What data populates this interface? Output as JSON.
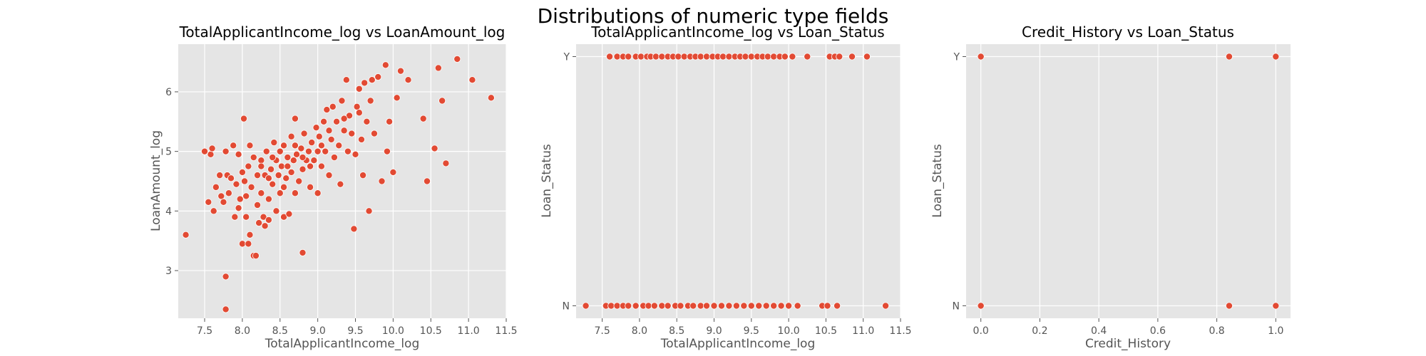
{
  "suptitle": "Distributions of numeric type fields",
  "chart_data": [
    {
      "type": "scatter",
      "title": "TotalApplicantIncome_log vs LoanAmount_log",
      "xlabel": "TotalApplicantIncome_log",
      "ylabel": "LoanAmount_log",
      "xlim": [
        7.15,
        11.5
      ],
      "ylim": [
        2.2,
        6.8
      ],
      "xticks": [
        "7.5",
        "8.0",
        "8.5",
        "9.0",
        "9.5",
        "10.0",
        "10.5",
        "11.0",
        "11.5"
      ],
      "yticks": [
        "3",
        "4",
        "5",
        "6"
      ],
      "grid": true,
      "points": [
        [
          7.25,
          3.6
        ],
        [
          7.5,
          5.0
        ],
        [
          7.55,
          4.15
        ],
        [
          7.58,
          4.95
        ],
        [
          7.6,
          5.05
        ],
        [
          7.62,
          4.0
        ],
        [
          7.65,
          4.4
        ],
        [
          7.7,
          4.6
        ],
        [
          7.72,
          4.25
        ],
        [
          7.75,
          4.15
        ],
        [
          7.78,
          5.0
        ],
        [
          7.78,
          2.9
        ],
        [
          7.78,
          2.35
        ],
        [
          7.8,
          4.6
        ],
        [
          7.82,
          4.3
        ],
        [
          7.85,
          4.55
        ],
        [
          7.88,
          5.1
        ],
        [
          7.9,
          3.9
        ],
        [
          7.92,
          4.45
        ],
        [
          7.95,
          4.05
        ],
        [
          7.95,
          4.95
        ],
        [
          7.97,
          4.2
        ],
        [
          8.0,
          3.45
        ],
        [
          8.0,
          4.65
        ],
        [
          8.02,
          5.55
        ],
        [
          8.03,
          4.5
        ],
        [
          8.05,
          3.9
        ],
        [
          8.05,
          4.25
        ],
        [
          8.08,
          4.75
        ],
        [
          8.08,
          3.45
        ],
        [
          8.1,
          3.6
        ],
        [
          8.1,
          5.1
        ],
        [
          8.12,
          4.4
        ],
        [
          8.15,
          3.25
        ],
        [
          8.15,
          4.9
        ],
        [
          8.18,
          3.25
        ],
        [
          8.2,
          4.6
        ],
        [
          8.2,
          4.1
        ],
        [
          8.22,
          3.8
        ],
        [
          8.25,
          4.85
        ],
        [
          8.25,
          4.3
        ],
        [
          8.28,
          3.9
        ],
        [
          8.3,
          3.75
        ],
        [
          8.3,
          4.6
        ],
        [
          8.32,
          5.0
        ],
        [
          8.35,
          4.2
        ],
        [
          8.35,
          3.85
        ],
        [
          8.38,
          4.7
        ],
        [
          8.4,
          4.45
        ],
        [
          8.42,
          5.15
        ],
        [
          8.45,
          4.0
        ],
        [
          8.45,
          4.85
        ],
        [
          8.48,
          4.6
        ],
        [
          8.5,
          5.0
        ],
        [
          8.5,
          4.3
        ],
        [
          8.52,
          4.75
        ],
        [
          8.55,
          5.1
        ],
        [
          8.55,
          3.9
        ],
        [
          8.58,
          4.55
        ],
        [
          8.6,
          4.9
        ],
        [
          8.62,
          3.95
        ],
        [
          8.65,
          4.65
        ],
        [
          8.65,
          5.25
        ],
        [
          8.68,
          4.85
        ],
        [
          8.7,
          5.55
        ],
        [
          8.7,
          4.3
        ],
        [
          8.72,
          4.95
        ],
        [
          8.75,
          4.5
        ],
        [
          8.78,
          5.05
        ],
        [
          8.8,
          4.7
        ],
        [
          8.8,
          3.3
        ],
        [
          8.82,
          5.3
        ],
        [
          8.85,
          4.85
        ],
        [
          8.88,
          5.0
        ],
        [
          8.9,
          4.4
        ],
        [
          8.92,
          5.15
        ],
        [
          8.95,
          4.85
        ],
        [
          8.98,
          5.4
        ],
        [
          9.0,
          5.0
        ],
        [
          9.0,
          4.3
        ],
        [
          9.02,
          5.25
        ],
        [
          9.05,
          4.75
        ],
        [
          9.08,
          5.5
        ],
        [
          9.1,
          5.0
        ],
        [
          9.12,
          5.7
        ],
        [
          9.15,
          4.6
        ],
        [
          9.18,
          5.2
        ],
        [
          9.2,
          5.75
        ],
        [
          9.22,
          4.9
        ],
        [
          9.25,
          5.5
        ],
        [
          9.28,
          5.1
        ],
        [
          9.3,
          4.45
        ],
        [
          9.32,
          5.85
        ],
        [
          9.35,
          5.35
        ],
        [
          9.38,
          6.2
        ],
        [
          9.4,
          5.0
        ],
        [
          9.42,
          5.6
        ],
        [
          9.45,
          5.3
        ],
        [
          9.48,
          3.7
        ],
        [
          9.5,
          4.95
        ],
        [
          9.52,
          5.75
        ],
        [
          9.55,
          6.05
        ],
        [
          9.58,
          5.2
        ],
        [
          9.6,
          4.6
        ],
        [
          9.62,
          6.15
        ],
        [
          9.65,
          5.5
        ],
        [
          9.68,
          4.0
        ],
        [
          9.7,
          5.85
        ],
        [
          9.72,
          6.2
        ],
        [
          9.75,
          5.3
        ],
        [
          9.8,
          6.25
        ],
        [
          9.85,
          4.5
        ],
        [
          9.9,
          6.45
        ],
        [
          9.92,
          5.0
        ],
        [
          9.95,
          5.5
        ],
        [
          10.0,
          4.65
        ],
        [
          10.05,
          5.9
        ],
        [
          10.1,
          6.35
        ],
        [
          10.2,
          6.2
        ],
        [
          10.4,
          5.55
        ],
        [
          10.45,
          4.5
        ],
        [
          10.55,
          5.05
        ],
        [
          10.6,
          6.4
        ],
        [
          10.65,
          5.85
        ],
        [
          10.7,
          4.8
        ],
        [
          10.85,
          6.55
        ],
        [
          11.05,
          6.2
        ],
        [
          11.3,
          5.9
        ],
        [
          8.6,
          4.75
        ],
        [
          8.7,
          5.1
        ],
        [
          8.9,
          4.75
        ],
        [
          9.05,
          5.1
        ],
        [
          8.4,
          4.9
        ],
        [
          8.35,
          4.55
        ],
        [
          8.8,
          4.9
        ],
        [
          9.15,
          5.35
        ],
        [
          9.35,
          5.55
        ],
        [
          9.55,
          5.65
        ],
        [
          8.25,
          4.75
        ],
        [
          8.55,
          4.4
        ]
      ]
    },
    {
      "type": "scatter",
      "title": "TotalApplicantIncome_log vs Loan_Status",
      "xlabel": "TotalApplicantIncome_log",
      "ylabel": "Loan_Status",
      "xlim": [
        7.15,
        11.5
      ],
      "ylim": [
        -0.05,
        1.05
      ],
      "xticks": [
        "7.5",
        "8.0",
        "8.5",
        "9.0",
        "9.5",
        "10.0",
        "10.5",
        "11.0",
        "11.5"
      ],
      "yticks": [
        "N",
        "Y"
      ],
      "grid": true,
      "points_y": [
        7.6,
        7.7,
        7.78,
        7.85,
        7.95,
        8.02,
        8.1,
        8.15,
        8.22,
        8.3,
        8.38,
        8.45,
        8.52,
        8.6,
        8.68,
        8.75,
        8.82,
        8.9,
        8.98,
        9.05,
        9.12,
        9.2,
        9.28,
        9.35,
        9.42,
        9.5,
        9.58,
        9.65,
        9.72,
        9.8,
        9.88,
        9.95,
        10.05,
        10.25,
        10.55,
        10.62,
        10.68,
        10.85,
        11.05
      ],
      "points_n": [
        7.28,
        7.55,
        7.62,
        7.7,
        7.78,
        7.85,
        7.95,
        8.05,
        8.12,
        8.2,
        8.3,
        8.38,
        8.48,
        8.55,
        8.65,
        8.72,
        8.82,
        8.9,
        9.0,
        9.1,
        9.2,
        9.3,
        9.4,
        9.5,
        9.6,
        9.7,
        9.8,
        9.9,
        10.0,
        10.12,
        10.45,
        10.52,
        10.65,
        11.3
      ]
    },
    {
      "type": "scatter",
      "title": "Credit_History vs Loan_Status",
      "xlabel": "Credit_History",
      "ylabel": "Loan_Status",
      "xlim": [
        -0.05,
        1.05
      ],
      "ylim": [
        -0.05,
        1.05
      ],
      "xticks": [
        "0.0",
        "0.2",
        "0.4",
        "0.6",
        "0.8",
        "1.0"
      ],
      "yticks": [
        "N",
        "Y"
      ],
      "grid": true,
      "points": [
        [
          0.0,
          1
        ],
        [
          0.842,
          1
        ],
        [
          1.0,
          1
        ],
        [
          0.0,
          0
        ],
        [
          0.842,
          0
        ],
        [
          1.0,
          0
        ]
      ]
    }
  ],
  "colors": {
    "point": "#e24a33",
    "panel": "#e5e5e5",
    "grid": "#ffffff"
  }
}
